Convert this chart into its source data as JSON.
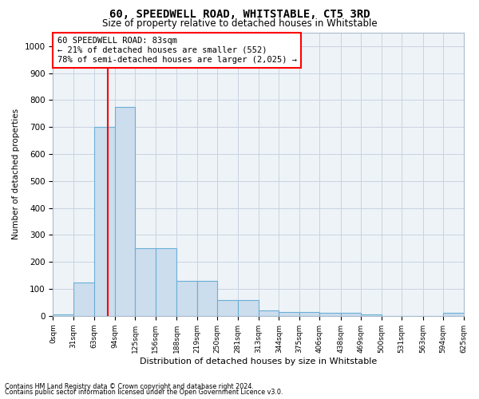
{
  "title": "60, SPEEDWELL ROAD, WHITSTABLE, CT5 3RD",
  "subtitle": "Size of property relative to detached houses in Whitstable",
  "xlabel": "Distribution of detached houses by size in Whitstable",
  "ylabel": "Number of detached properties",
  "footnote1": "Contains HM Land Registry data © Crown copyright and database right 2024.",
  "footnote2": "Contains public sector information licensed under the Open Government Licence v3.0.",
  "annotation_line1": "60 SPEEDWELL ROAD: 83sqm",
  "annotation_line2": "← 21% of detached houses are smaller (552)",
  "annotation_line3": "78% of semi-detached houses are larger (2,025) →",
  "bar_color": "#ccdded",
  "bar_edge_color": "#6aafd6",
  "vline_color": "red",
  "vline_x": 83,
  "bin_edges": [
    0,
    31,
    63,
    94,
    125,
    156,
    188,
    219,
    250,
    281,
    313,
    344,
    375,
    406,
    438,
    469,
    500,
    531,
    563,
    594,
    625
  ],
  "bin_counts": [
    5,
    125,
    700,
    775,
    250,
    250,
    130,
    130,
    60,
    60,
    20,
    15,
    15,
    10,
    10,
    5,
    0,
    0,
    0,
    10
  ],
  "ylim": [
    0,
    1050
  ],
  "yticks": [
    0,
    100,
    200,
    300,
    400,
    500,
    600,
    700,
    800,
    900,
    1000
  ],
  "grid_color": "#c8d4e0",
  "ax_bg_color": "#eef3f8"
}
